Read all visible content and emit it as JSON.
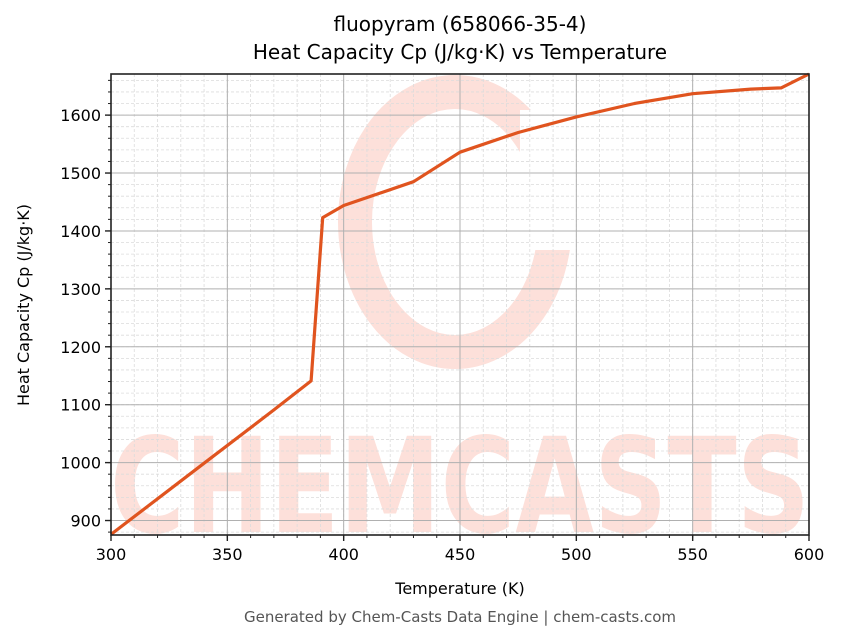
{
  "title_line1": "fluopyram (658066-35-4)",
  "title_line2": "Heat Capacity Cp (J/kg·K) vs Temperature",
  "footer": "Generated by Chem-Casts Data Engine | chem-casts.com",
  "watermark": {
    "text": "CHEMCASTS",
    "color": "#FDE0DA"
  },
  "colors": {
    "line": "#E0541F",
    "grid_major": "#b0b0b0",
    "grid_minor": "#dcdcdc",
    "axis": "#222222"
  },
  "chart_data": {
    "type": "line",
    "title": "fluopyram (658066-35-4)\nHeat Capacity Cp (J/kg·K) vs Temperature",
    "xlabel": "Temperature (K)",
    "ylabel": "Heat Capacity Cp (J/kg·K)",
    "xlim": [
      300,
      600
    ],
    "ylim": [
      875,
      1671
    ],
    "xticks": [
      300,
      350,
      400,
      450,
      500,
      550,
      600
    ],
    "yticks": [
      900,
      1000,
      1100,
      1200,
      1300,
      1400,
      1500,
      1600
    ],
    "grid": true,
    "legend": null,
    "series": [
      {
        "name": "Cp",
        "x": [
          300,
          340,
          370,
          386,
          391,
          400,
          430,
          450,
          475,
          500,
          525,
          550,
          575,
          588,
          600
        ],
        "y": [
          876,
          999,
          1091,
          1141,
          1423,
          1444,
          1485,
          1536,
          1570,
          1597,
          1620,
          1637,
          1645,
          1647,
          1671
        ]
      }
    ]
  }
}
